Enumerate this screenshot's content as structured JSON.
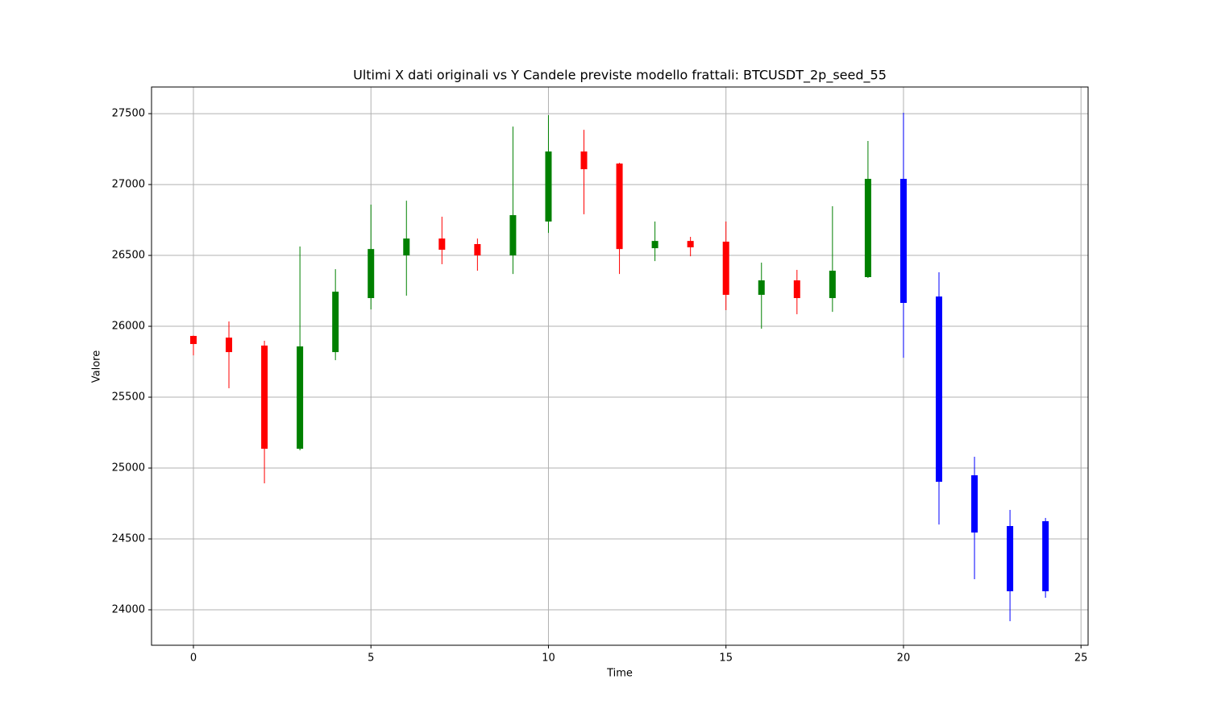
{
  "chart_data": {
    "type": "candlestick",
    "title": "Ultimi X dati originali vs Y Candele previste modello frattali: BTCUSDT_2p_seed_55",
    "xlabel": "Time",
    "ylabel": "Valore",
    "xlim": [
      -1.18,
      25.2
    ],
    "ylim": [
      23750,
      27688
    ],
    "xticks": [
      0,
      5,
      10,
      15,
      20,
      25
    ],
    "yticks": [
      24000,
      24500,
      25000,
      25500,
      26000,
      26500,
      27000,
      27500
    ],
    "grid": true,
    "series": [
      {
        "up_color": "green",
        "down_color": "red",
        "x": [
          0,
          1,
          2,
          3,
          4,
          5,
          6,
          7,
          8,
          9,
          10,
          11,
          12,
          13,
          14,
          15,
          16,
          17,
          18,
          19
        ],
        "open": [
          25932,
          25920,
          25864,
          25136,
          25818,
          26199,
          26500,
          26619,
          26580,
          26500,
          26739,
          27233,
          27148,
          26551,
          26602,
          26597,
          26222,
          26324,
          26199,
          26347
        ],
        "high": [
          25935,
          26034,
          25898,
          26563,
          26403,
          26858,
          26886,
          26773,
          26619,
          27409,
          27489,
          27386,
          27153,
          26739,
          26631,
          26739,
          26449,
          26398,
          26847,
          27307
        ],
        "low": [
          25795,
          25563,
          24892,
          25125,
          25761,
          26119,
          26216,
          26438,
          26392,
          26369,
          26659,
          26790,
          26369,
          26460,
          26494,
          26114,
          25983,
          26085,
          26102,
          26341
        ],
        "close": [
          25875,
          25818,
          25136,
          25858,
          26244,
          26545,
          26619,
          26540,
          26500,
          26784,
          27233,
          27108,
          26545,
          26602,
          26557,
          26222,
          26324,
          26199,
          26392,
          27040
        ]
      },
      {
        "color": "blue",
        "x": [
          20,
          21,
          22,
          23,
          24
        ],
        "open": [
          27040,
          26210,
          24949,
          24591,
          24625
        ],
        "high": [
          27506,
          26381,
          25080,
          24705,
          24648
        ],
        "low": [
          25778,
          24602,
          24216,
          23920,
          24085
        ],
        "close": [
          26165,
          24903,
          24545,
          24131,
          24131
        ]
      }
    ]
  }
}
